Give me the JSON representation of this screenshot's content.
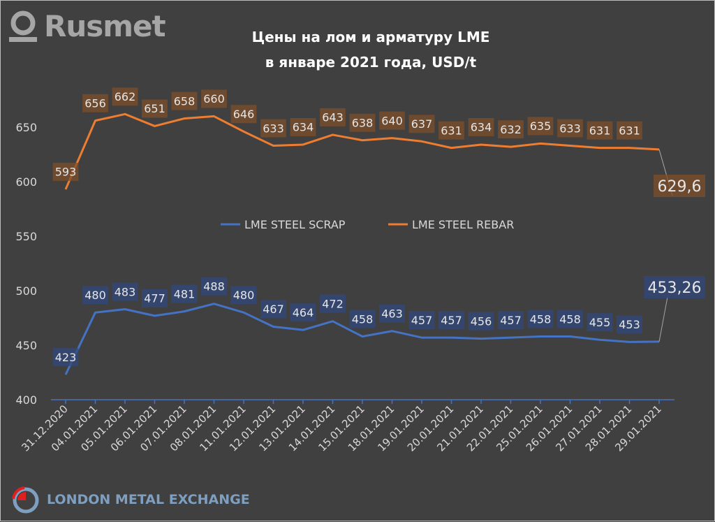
{
  "logo": {
    "brand": "Rusmet",
    "footer_logo": "LONDON METAL EXCHANGE"
  },
  "chart_data": {
    "type": "line",
    "title": "Цены на лом и арматуру LME",
    "subtitle": "в январе 2021 года, USD/t",
    "categories": [
      "31.12.2020",
      "04.01.2021",
      "05.01.2021",
      "06.01.2021",
      "07.01.2021",
      "08.01.2021",
      "11.01.2021",
      "12.01.2021",
      "13.01.2021",
      "14.01.2021",
      "15.01.2021",
      "18.01.2021",
      "19.01.2021",
      "20.01.2021",
      "21.01.2021",
      "22.01.2021",
      "25.01.2021",
      "26.01.2021",
      "27.01.2021",
      "28.01.2021",
      "29.01.2021"
    ],
    "series": [
      {
        "name": "LME STEEL SCRAP",
        "color": "#4472c4",
        "values": [
          423,
          480,
          483,
          477,
          481,
          488,
          480,
          467,
          464,
          472,
          458,
          463,
          457,
          457,
          456,
          457,
          458,
          458,
          455,
          453,
          453.26
        ],
        "labels": [
          "423",
          "480",
          "483",
          "477",
          "481",
          "488",
          "480",
          "467",
          "464",
          "472",
          "458",
          "463",
          "457",
          "457",
          "456",
          "457",
          "458",
          "458",
          "455",
          "453",
          "453,26"
        ]
      },
      {
        "name": "LME STEEL REBAR",
        "color": "#ed7d31",
        "values": [
          593,
          656,
          662,
          651,
          658,
          660,
          646,
          633,
          634,
          643,
          638,
          640,
          637,
          631,
          634,
          632,
          635,
          633,
          631,
          631,
          629.6
        ],
        "labels": [
          "593",
          "656",
          "662",
          "651",
          "658",
          "660",
          "646",
          "633",
          "634",
          "643",
          "638",
          "640",
          "637",
          "631",
          "634",
          "632",
          "635",
          "633",
          "631",
          "631",
          "629,6"
        ]
      }
    ],
    "yticks": [
      400,
      450,
      500,
      550,
      600,
      650
    ],
    "ylim": [
      400,
      650
    ],
    "grid": false,
    "legend": "center"
  }
}
